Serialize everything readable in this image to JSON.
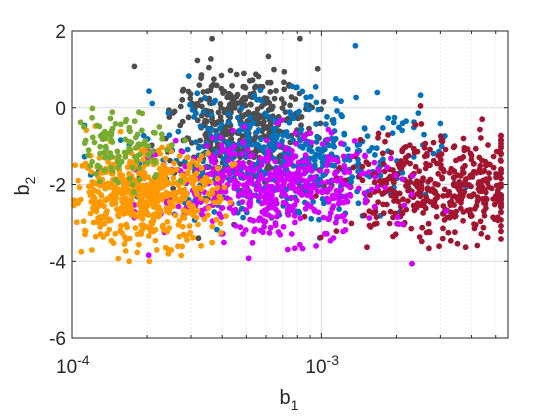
{
  "chart_data": {
    "type": "scatter",
    "title": "",
    "xlabel": "b",
    "xlabel_sub": "1",
    "ylabel": "b",
    "ylabel_sub": "2",
    "x_scale": "log",
    "xlim": [
      0.0001,
      0.0056
    ],
    "ylim": [
      -6,
      2
    ],
    "grid": true,
    "y_ticks": [
      -6,
      -4,
      -2,
      0,
      2
    ],
    "y_tick_labels": [
      "-6",
      "-4",
      "-2",
      "0",
      "2"
    ],
    "x_ticks": [
      0.0001,
      0.001
    ],
    "x_tick_labels": [
      {
        "base": "10",
        "exp": "-4"
      },
      {
        "base": "10",
        "exp": "-3"
      }
    ],
    "series": [
      {
        "color": "#4d4d4d",
        "center_log10_x": -3.32,
        "center_y": -0.5,
        "spread_log10_x": 0.14,
        "spread_y": 0.75,
        "count": 420,
        "log10_x_range": [
          -3.75,
          -2.6
        ],
        "y_range": [
          -3.4,
          1.8
        ]
      },
      {
        "color": "#0072bd",
        "center_log10_x": -3.15,
        "center_y": -1.3,
        "spread_log10_x": 0.28,
        "spread_y": 0.8,
        "count": 500,
        "log10_x_range": [
          -3.95,
          -2.35
        ],
        "y_range": [
          -3.4,
          1.8
        ]
      },
      {
        "color": "#a2142f",
        "center_log10_x": -2.52,
        "center_y": -2.1,
        "spread_log10_x": 0.2,
        "spread_y": 0.65,
        "count": 430,
        "log10_x_range": [
          -3.1,
          -2.28
        ],
        "y_range": [
          -4.9,
          1.4
        ]
      },
      {
        "color": "#d400ff",
        "center_log10_x": -3.2,
        "center_y": -2.1,
        "spread_log10_x": 0.22,
        "spread_y": 0.65,
        "count": 500,
        "log10_x_range": [
          -3.75,
          -2.5
        ],
        "y_range": [
          -4.6,
          1.7
        ]
      },
      {
        "color": "#ff9900",
        "center_log10_x": -3.72,
        "center_y": -2.3,
        "spread_log10_x": 0.15,
        "spread_y": 0.6,
        "count": 560,
        "log10_x_range": [
          -4.0,
          -3.2
        ],
        "y_range": [
          -4.0,
          1.4
        ]
      },
      {
        "color": "#77ac30",
        "center_log10_x": -3.8,
        "center_y": -1.0,
        "spread_log10_x": 0.12,
        "spread_y": 0.5,
        "count": 120,
        "log10_x_range": [
          -4.0,
          -3.4
        ],
        "y_range": [
          -2.2,
          0.8
        ]
      }
    ]
  }
}
